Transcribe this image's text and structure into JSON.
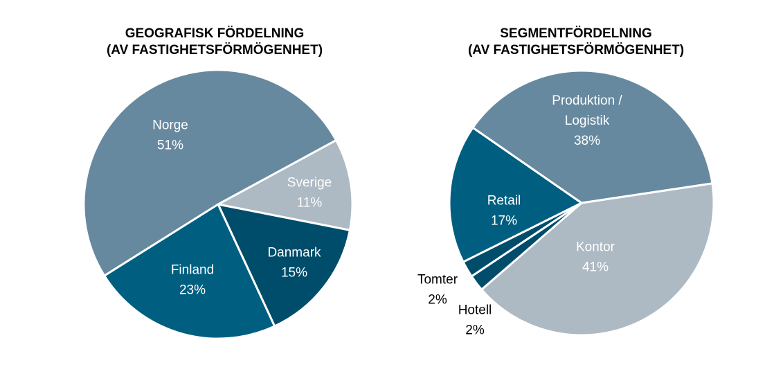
{
  "chart_data": [
    {
      "type": "pie",
      "title": [
        "GEOGRAFISK FÖRDELNING",
        "(AV FASTIGHETSFÖRMÖGENHET)"
      ],
      "slices": [
        {
          "label": "Sverige",
          "value": 11,
          "value_label": "11%",
          "color": "#adb9c3",
          "label_color": "#ffffff"
        },
        {
          "label": "Danmark",
          "value": 15,
          "value_label": "15%",
          "color": "#004d6b",
          "label_color": "#ffffff"
        },
        {
          "label": "Finland",
          "value": 23,
          "value_label": "23%",
          "color": "#005f80",
          "label_color": "#ffffff"
        },
        {
          "label": "Norge",
          "value": 51,
          "value_label": "51%",
          "color": "#66899f",
          "label_color": "#ffffff"
        }
      ]
    },
    {
      "type": "pie",
      "title": [
        "SEGMENTFÖRDELNING",
        "(AV FASTIGHETSFÖRMÖGENHET)"
      ],
      "slices": [
        {
          "label": "Kontor",
          "value": 41,
          "value_label": "41%",
          "color": "#adb9c3",
          "label_color": "#ffffff"
        },
        {
          "label": "Hotell",
          "value": 2,
          "value_label": "2%",
          "color": "#004d6b",
          "label_color": "#000000"
        },
        {
          "label": "Tomter",
          "value": 2,
          "value_label": "2%",
          "color": "#004d6b",
          "label_color": "#000000"
        },
        {
          "label": "Retail",
          "value": 17,
          "value_label": "17%",
          "color": "#005f80",
          "label_color": "#ffffff"
        },
        {
          "label": "Produktion / Logistik",
          "label_lines": [
            "Produktion /",
            "Logistik"
          ],
          "value": 38,
          "value_label": "38%",
          "color": "#66899f",
          "label_color": "#ffffff"
        }
      ]
    }
  ]
}
